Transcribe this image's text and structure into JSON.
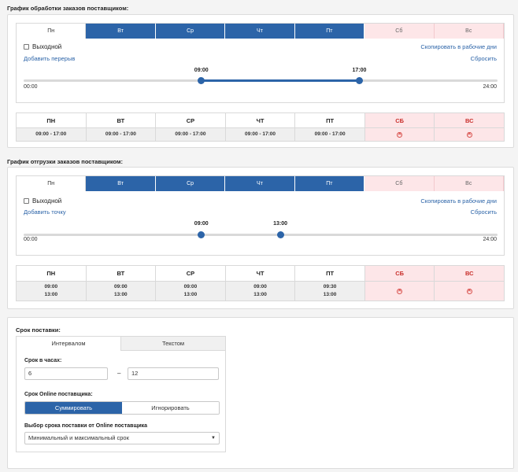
{
  "processing": {
    "title": "График обработки заказов поставщиком:",
    "tabs": [
      "Пн",
      "Вт",
      "Ср",
      "Чт",
      "Пт",
      "Сб",
      "Вс"
    ],
    "dayoff_label": "Выходной",
    "add_link": "Добавить перерыв",
    "copy_link": "Скопировать в рабочие дни",
    "reset_link": "Сбросить",
    "axis_start": "00:00",
    "axis_end": "24:00",
    "handle1": "09:00",
    "handle2": "17:00",
    "handle1_hours": 9,
    "handle2_hours": 17,
    "summary": [
      {
        "day": "ПН",
        "v1": "09:00 - 17:00"
      },
      {
        "day": "ВТ",
        "v1": "09:00 - 17:00"
      },
      {
        "day": "СР",
        "v1": "09:00 - 17:00"
      },
      {
        "day": "ЧТ",
        "v1": "09:00 - 17:00"
      },
      {
        "day": "ПТ",
        "v1": "09:00 - 17:00"
      },
      {
        "day": "СБ",
        "v1": ""
      },
      {
        "day": "ВС",
        "v1": ""
      }
    ]
  },
  "shipment": {
    "title": "График отгрузки заказов поставщиком:",
    "tabs": [
      "Пн",
      "Вт",
      "Ср",
      "Чт",
      "Пт",
      "Сб",
      "Вс"
    ],
    "dayoff_label": "Выходной",
    "add_link": "Добавить точку",
    "copy_link": "Скопировать в рабочие дни",
    "reset_link": "Сбросить",
    "axis_start": "00:00",
    "axis_end": "24:00",
    "handle1": "09:00",
    "handle2": "13:00",
    "handle1_hours": 9,
    "handle2_hours": 13,
    "summary": [
      {
        "day": "ПН",
        "v1": "09:00",
        "v2": "13:00"
      },
      {
        "day": "ВТ",
        "v1": "09:00",
        "v2": "13:00"
      },
      {
        "day": "СР",
        "v1": "09:00",
        "v2": "13:00"
      },
      {
        "day": "ЧТ",
        "v1": "09:00",
        "v2": "13:00"
      },
      {
        "day": "ПТ",
        "v1": "09:30",
        "v2": "13:00"
      },
      {
        "day": "СБ",
        "v1": "",
        "v2": ""
      },
      {
        "day": "ВС",
        "v1": "",
        "v2": ""
      }
    ]
  },
  "delivery": {
    "title": "Срок поставки:",
    "tab_interval": "Интервалом",
    "tab_text": "Текстом",
    "hours_label": "Срок в часах:",
    "hours_from": "6",
    "hours_to": "12",
    "dash": "–",
    "online_label": "Срок Online поставщика:",
    "sum_btn": "Суммировать",
    "ignore_btn": "Игнорировать",
    "select_label": "Выбор срока поставки от Online поставщика",
    "select_value": "Минимальный и максимальный срок",
    "select_arrow": "▼"
  },
  "icons": {
    "remove": "✕"
  },
  "colors": {
    "accent": "#2c64a8",
    "weekend_bg": "#fde6e8",
    "weekend_text": "#c9302c"
  }
}
